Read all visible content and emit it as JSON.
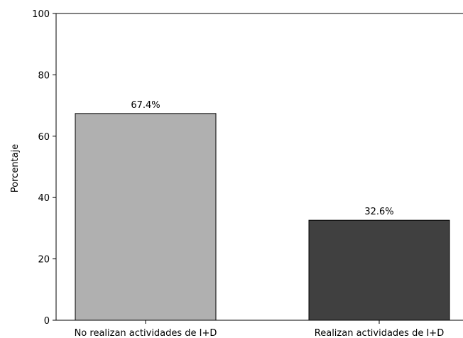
{
  "chart_data": {
    "type": "bar",
    "title": "",
    "xlabel": "",
    "ylabel": "Porcentaje",
    "ylim": [
      0,
      100
    ],
    "yticks": [
      0,
      20,
      40,
      60,
      80,
      100
    ],
    "categories": [
      "No realizan actividades de I+D",
      "Realizan actividades de I+D"
    ],
    "values": [
      67.4,
      32.6
    ],
    "value_labels": [
      "67.4%",
      "32.6%"
    ],
    "bar_colors": [
      "#b0b0b0",
      "#404040"
    ],
    "edge_color": "#000000",
    "grid": false,
    "legend": "none"
  }
}
